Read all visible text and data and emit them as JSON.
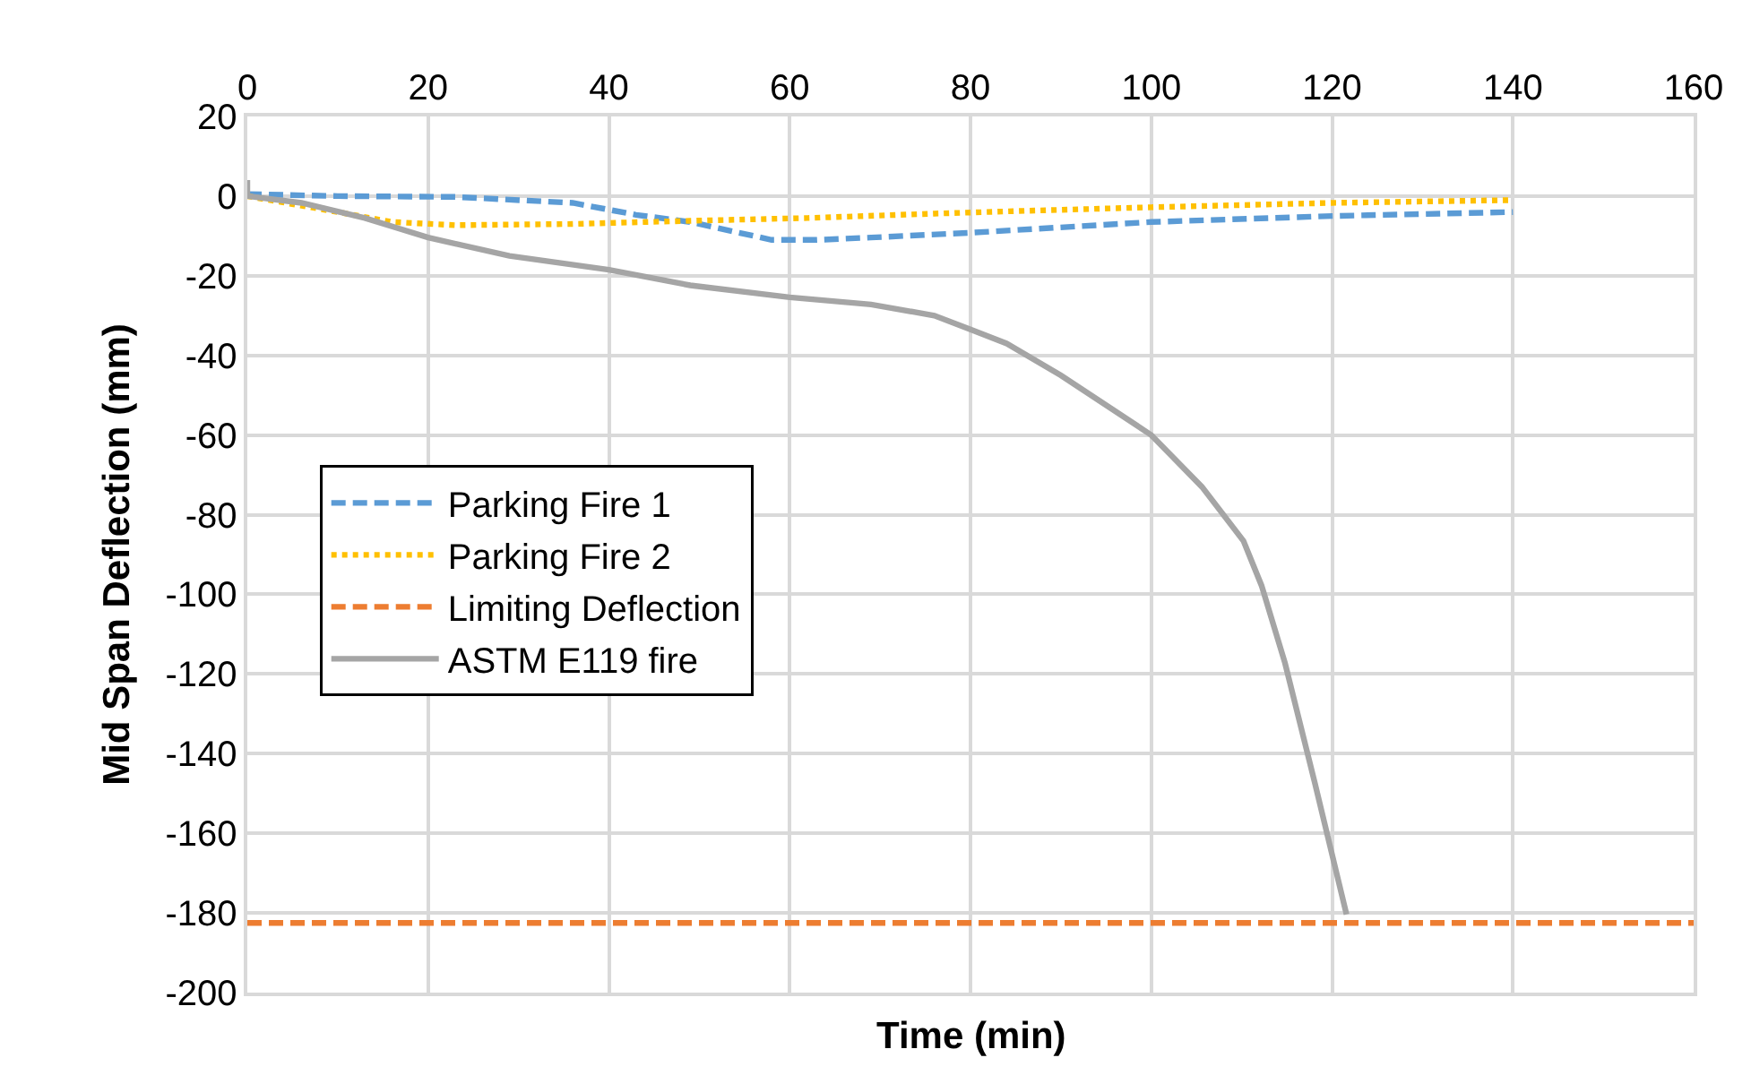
{
  "chart_data": {
    "type": "line",
    "xlabel": "Time (min)",
    "ylabel": "Mid Span Deflection (mm)",
    "xlim": [
      0,
      160
    ],
    "xticks": [
      0,
      20,
      40,
      60,
      80,
      100,
      120,
      140,
      160
    ],
    "ylim": [
      -200,
      20
    ],
    "yticks": [
      -200,
      -180,
      -160,
      -140,
      -120,
      -100,
      -80,
      -60,
      -40,
      -20,
      0,
      20
    ],
    "grid": true,
    "legend": "left",
    "series": [
      {
        "name": "Parking Fire 1",
        "color": "#5b9bd5",
        "line_style": "dashed",
        "x": [
          0,
          10,
          23,
          36,
          43,
          49,
          58,
          63,
          69,
          80,
          100,
          120,
          140
        ],
        "values": [
          0.5,
          0,
          -0.2,
          -1.7,
          -4.7,
          -6.5,
          -11,
          -11,
          -10.4,
          -9.2,
          -6.5,
          -5,
          -4
        ]
      },
      {
        "name": "Parking Fire 2",
        "color": "#ffc000",
        "line_style": "dotted",
        "x": [
          0,
          10,
          16,
          23,
          36,
          49,
          62,
          76,
          86,
          100,
          120,
          140
        ],
        "values": [
          0,
          -4,
          -6.5,
          -7.3,
          -7,
          -6.2,
          -5.5,
          -4.4,
          -3.7,
          -2.8,
          -1.7,
          -1
        ]
      },
      {
        "name": "Limiting Deflection",
        "color": "#ed7d31",
        "line_style": "dashed",
        "x": [
          0,
          160
        ],
        "values": [
          -182.5,
          -182.5
        ]
      },
      {
        "name": "ASTM E119 fire",
        "color": "#a5a5a5",
        "line_style": "solid",
        "x": [
          0,
          0,
          6,
          13,
          20,
          29,
          40,
          49,
          60,
          69,
          76,
          80,
          84,
          90,
          100,
          105.6,
          110.2,
          112.2,
          114.8,
          118.1,
          121.6
        ],
        "values": [
          4,
          0,
          -1.7,
          -5.5,
          -10.4,
          -15,
          -18.5,
          -22.4,
          -25.4,
          -27.2,
          -30,
          -33.5,
          -37,
          -45,
          -60,
          -73,
          -86.6,
          -97.8,
          -117.3,
          -147.4,
          -180.4
        ]
      }
    ]
  }
}
